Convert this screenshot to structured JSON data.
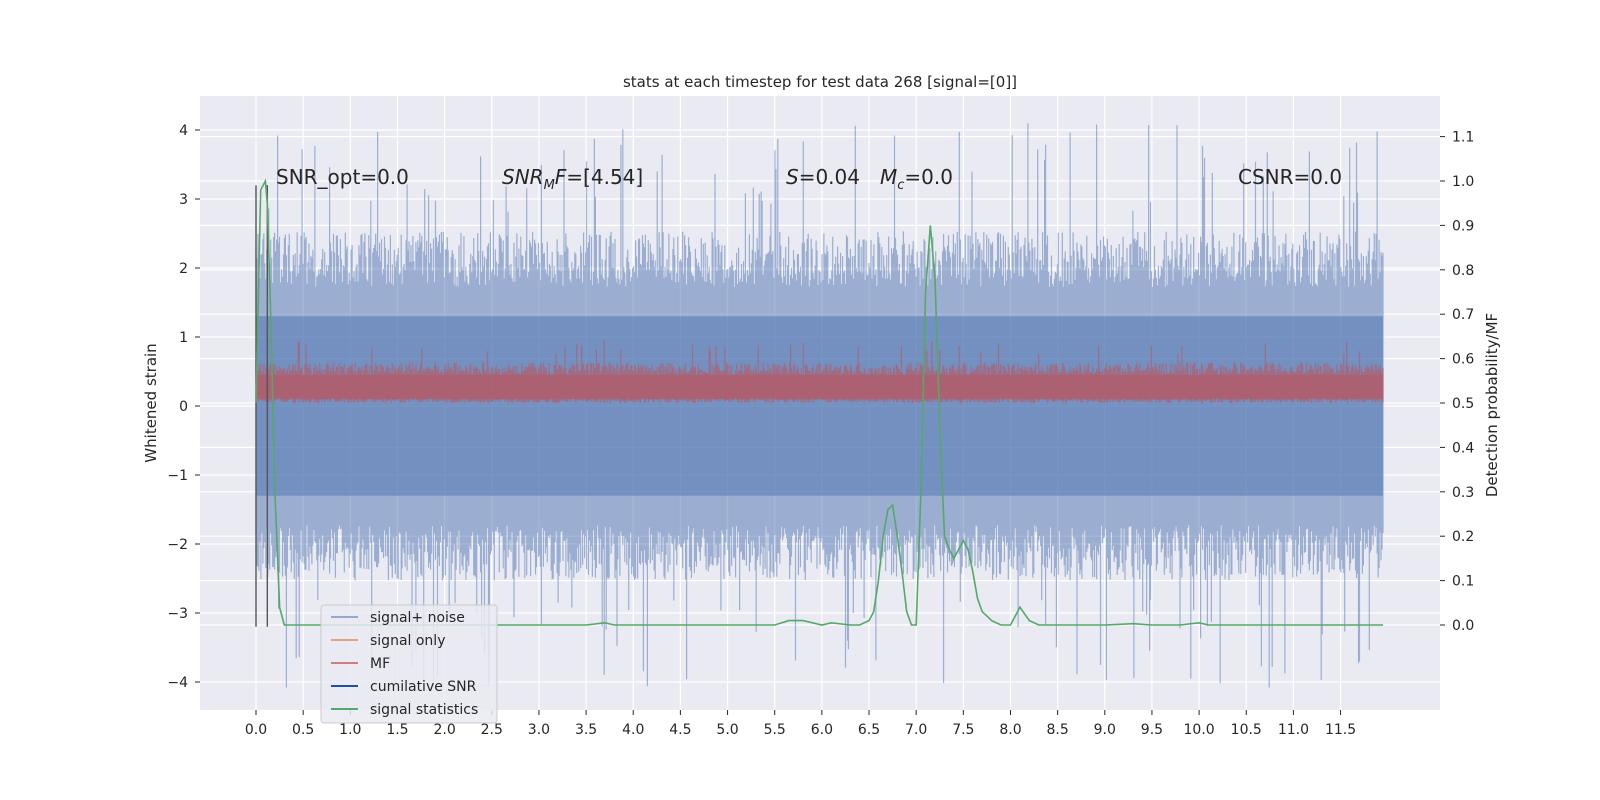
{
  "chart_data": {
    "type": "line",
    "title": "stats at each timestep for test data 268 [signal=[0]]",
    "ylabel": "Whitened strain",
    "y2label": "Detection probability/MF",
    "xlim": [
      -0.25,
      12.45
    ],
    "ylim": [
      -4.45,
      4.5
    ],
    "y2lim": [
      -0.2,
      1.2
    ],
    "x_ticks": [
      "0.0",
      "0.5",
      "1.0",
      "1.5",
      "2.0",
      "2.5",
      "3.0",
      "3.5",
      "4.0",
      "4.5",
      "5.0",
      "5.5",
      "6.0",
      "6.5",
      "7.0",
      "7.5",
      "8.0",
      "8.5",
      "9.0",
      "9.5",
      "10.0",
      "10.5",
      "11.0",
      "11.5"
    ],
    "y_ticks": [
      "−4",
      "−3",
      "−2",
      "−1",
      "0",
      "1",
      "2",
      "3",
      "4"
    ],
    "y2_ticks": [
      "0.0",
      "0.1",
      "0.2",
      "0.3",
      "0.4",
      "0.5",
      "0.6",
      "0.7",
      "0.8",
      "0.9",
      "1.0",
      "1.1"
    ],
    "annotations": {
      "snr_opt": "SNR_opt=0.0",
      "snr_mf": "=[4.54]",
      "s_val": "=0.04",
      "mc_val": "=0.0",
      "csnr": "CSNR=0.0"
    },
    "vlines": [
      0.0,
      0.12
    ],
    "grid": true,
    "legend_position": "lower-left",
    "series": [
      {
        "name": "signal+ noise",
        "color": "#4c72b0",
        "band_upper_typical": 2.3,
        "band_lower_typical": -2.3,
        "peak_max": 4.1,
        "peak_min": -4.1
      },
      {
        "name": "signal only",
        "color": "#dd8452",
        "values": []
      },
      {
        "name": "MF",
        "color": "#c44e52",
        "band_upper_typical": 0.6,
        "band_lower_typical": 0.1
      },
      {
        "name": "cumilative SNR",
        "color": "#1f4fa0",
        "values": []
      },
      {
        "name": "signal statistics",
        "color": "#55a868",
        "axis": "right",
        "x": [
          0.0,
          0.05,
          0.1,
          0.12,
          0.15,
          0.2,
          0.25,
          0.3,
          0.5,
          1.0,
          2.0,
          3.0,
          3.5,
          3.7,
          3.8,
          4.0,
          5.0,
          5.5,
          5.65,
          5.8,
          6.0,
          6.1,
          6.3,
          6.4,
          6.5,
          6.55,
          6.6,
          6.65,
          6.7,
          6.75,
          6.8,
          6.85,
          6.9,
          6.95,
          7.0,
          7.05,
          7.1,
          7.15,
          7.2,
          7.25,
          7.3,
          7.35,
          7.4,
          7.45,
          7.5,
          7.55,
          7.6,
          7.65,
          7.7,
          7.75,
          7.8,
          7.9,
          8.0,
          8.05,
          8.1,
          8.2,
          8.3,
          8.4,
          8.6,
          9.0,
          9.3,
          9.5,
          9.8,
          10.0,
          10.1,
          10.3,
          10.5,
          11.0,
          11.5,
          11.8,
          11.95
        ],
        "y": [
          0.5,
          0.98,
          1.0,
          0.95,
          0.75,
          0.3,
          0.04,
          0.0,
          0.0,
          0.0,
          0.0,
          0.0,
          0.0,
          0.005,
          0.0,
          0.0,
          0.0,
          0.0,
          0.01,
          0.01,
          0.0,
          0.005,
          0.0,
          0.0,
          0.01,
          0.03,
          0.1,
          0.2,
          0.26,
          0.27,
          0.2,
          0.12,
          0.03,
          0.0,
          0.0,
          0.3,
          0.75,
          0.9,
          0.78,
          0.45,
          0.2,
          0.17,
          0.15,
          0.17,
          0.19,
          0.17,
          0.12,
          0.06,
          0.03,
          0.02,
          0.01,
          0.0,
          0.0,
          0.02,
          0.04,
          0.01,
          0.0,
          0.0,
          0.0,
          0.0,
          0.003,
          0.0,
          0.0,
          0.005,
          0.0,
          0.0,
          0.0,
          0.0,
          0.0,
          0.0,
          0.0
        ]
      }
    ]
  }
}
